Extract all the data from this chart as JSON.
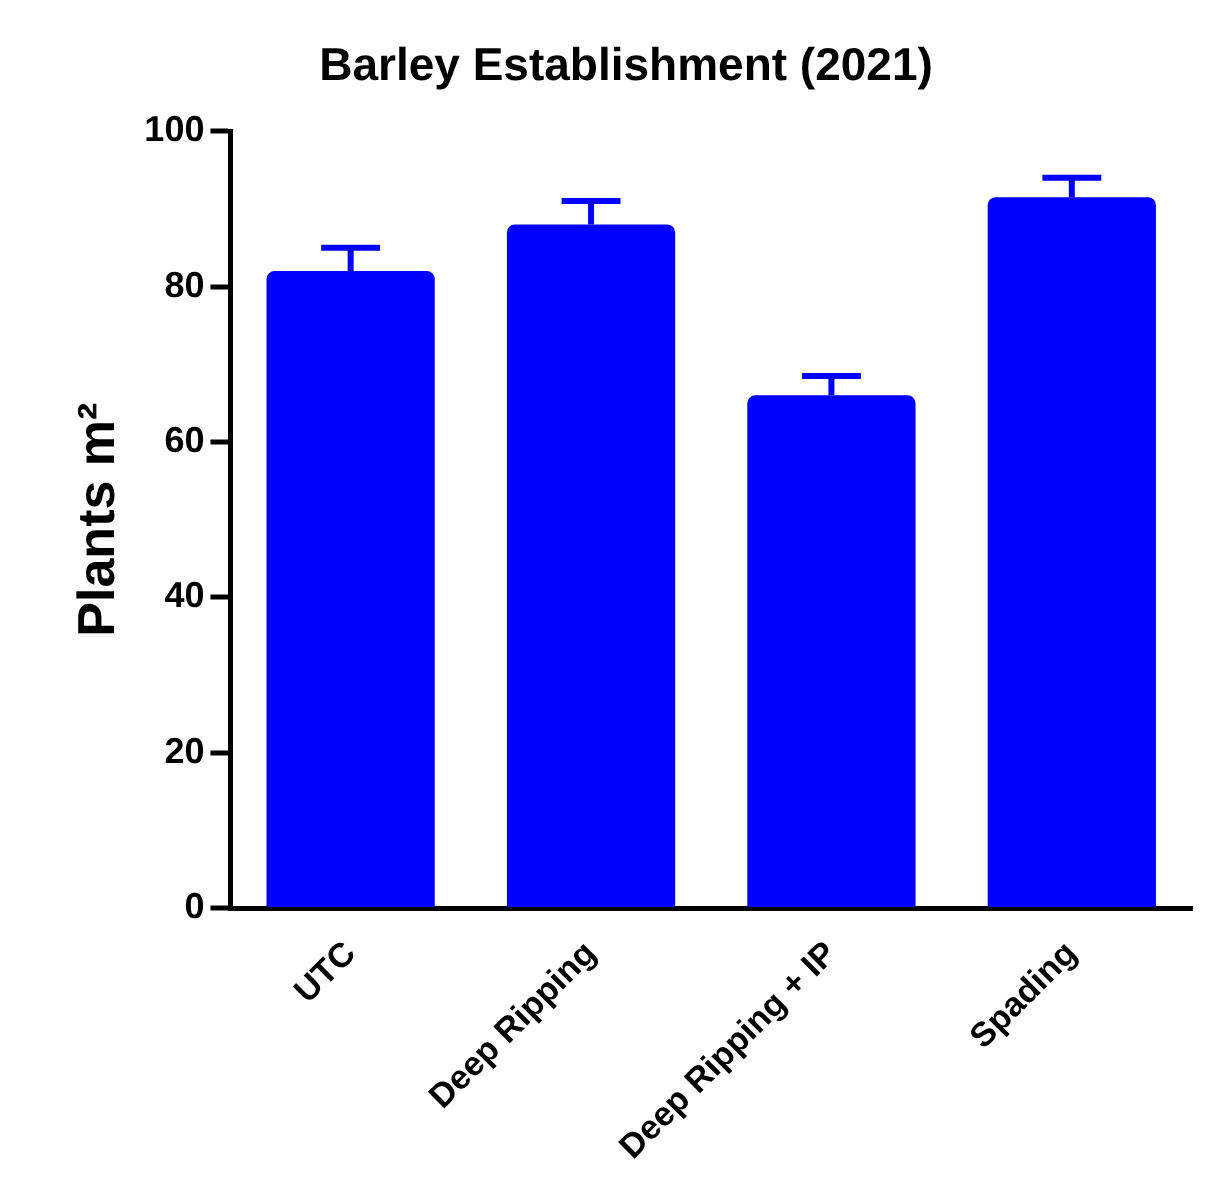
{
  "chart_data": {
    "type": "bar",
    "title": "Barley Establishment (2021)",
    "ylabel": "Plants m²",
    "categories": [
      "UTC",
      "Deep Ripping",
      "Deep Ripping + IP",
      "Spading"
    ],
    "values": [
      82,
      88,
      66,
      91.5
    ],
    "errors": [
      [
        82,
        85
      ],
      [
        88,
        91
      ],
      [
        66,
        68.5
      ],
      [
        91.5,
        94
      ]
    ],
    "color": "#0000ff",
    "ylim": [
      0,
      100
    ],
    "yticks": [
      0,
      20,
      40,
      60,
      80,
      100
    ],
    "grid": false,
    "legend": false
  }
}
